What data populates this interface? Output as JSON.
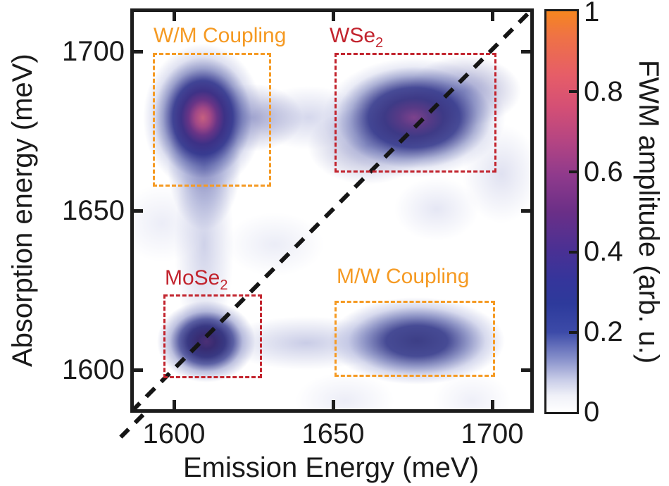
{
  "fig": {
    "x_label": "Emission Energy (meV)",
    "y_label": "Absorption energy (meV)",
    "x_ticks": [
      "1600",
      "1650",
      "1700"
    ],
    "y_ticks": [
      "1700",
      "1650",
      "1600"
    ],
    "colorbar_title": "FWM amplitude (arb. u.)",
    "colorbar_ticks": [
      "1",
      "0.8",
      "0.6",
      "0.4",
      "0.2",
      "0"
    ],
    "labels": {
      "wm_coupling": "W/M Coupling",
      "mw_coupling": "M/W Coupling",
      "wse2_base": "WSe",
      "wse2_sub": "2",
      "mose2_base": "MoSe",
      "mose2_sub": "2"
    },
    "colors": {
      "coupling_box_orange": "#F59A23",
      "intra_box_red": "#C2242E",
      "diagonal_line": "#151515",
      "colormap_top_orange": "#F6861F",
      "colormap_mid_magenta": "#8F3A8C",
      "colormap_blue": "#2D3A9B",
      "colormap_bottom_white": "#FFFFFF"
    }
  },
  "chart_data": {
    "type": "heatmap",
    "title": "",
    "xlabel": "Emission Energy (meV)",
    "ylabel": "Absorption energy (meV)",
    "colorbar_label": "FWM amplitude (arb. u.)",
    "colorbar_ticks": [
      0,
      0.2,
      0.4,
      0.6,
      0.8,
      1
    ],
    "xlim": [
      1587,
      1713
    ],
    "ylim": [
      1587,
      1713
    ],
    "x_tick_values": [
      1600,
      1650,
      1700
    ],
    "y_tick_values": [
      1600,
      1650,
      1700
    ],
    "grid": false,
    "diagonal_line": {
      "present": true,
      "style": "dashed",
      "color": "#151515",
      "from": [
        1587,
        1587
      ],
      "to": [
        1713,
        1713
      ]
    },
    "peaks": [
      {
        "name": "MoSe2 exciton",
        "emission_meV": 1610,
        "absorption_meV": 1609,
        "amplitude": 0.45,
        "on_diagonal": true,
        "shape": "round, ~15 meV wide"
      },
      {
        "name": "WSe2 exciton",
        "emission_meV": 1677,
        "absorption_meV": 1681,
        "amplitude": 0.55,
        "on_diagonal": true,
        "shape": "elongated along emission axis, ~40 meV wide"
      },
      {
        "name": "W/M coupling cross peak",
        "emission_meV": 1609,
        "absorption_meV": 1681,
        "amplitude": 0.75,
        "on_diagonal": false,
        "shape": "teardrop extending to lower absorption"
      },
      {
        "name": "M/W coupling cross peak",
        "emission_meV": 1677,
        "absorption_meV": 1610,
        "amplitude": 0.35,
        "on_diagonal": false,
        "shape": "elongated along emission axis"
      }
    ],
    "boxes": [
      {
        "label": "W/M Coupling",
        "color": "#F59A23",
        "emission_range": [
          1593,
          1631
        ],
        "absorption_range": [
          1657,
          1700
        ]
      },
      {
        "label": "WSe2",
        "color": "#C2242E",
        "emission_range": [
          1650,
          1701
        ],
        "absorption_range": [
          1662,
          1700
        ]
      },
      {
        "label": "MoSe2",
        "color": "#C2242E",
        "emission_range": [
          1597,
          1628
        ],
        "absorption_range": [
          1597,
          1623
        ]
      },
      {
        "label": "M/W Coupling",
        "color": "#F59A23",
        "emission_range": [
          1650,
          1701
        ],
        "absorption_range": [
          1598,
          1621
        ]
      }
    ],
    "colormap_stops_value_to_hex": [
      [
        0.0,
        "#FFFFFF"
      ],
      [
        0.1,
        "#C9CDE8"
      ],
      [
        0.2,
        "#3C4AA8"
      ],
      [
        0.3,
        "#2D3A9B"
      ],
      [
        0.4,
        "#4C3093"
      ],
      [
        0.5,
        "#6B2F87"
      ],
      [
        0.6,
        "#8F3A8C"
      ],
      [
        0.7,
        "#B24483"
      ],
      [
        0.8,
        "#D44F75"
      ],
      [
        0.9,
        "#EF7344"
      ],
      [
        1.0,
        "#F6861F"
      ]
    ],
    "legend_position": "colorbar-right"
  }
}
